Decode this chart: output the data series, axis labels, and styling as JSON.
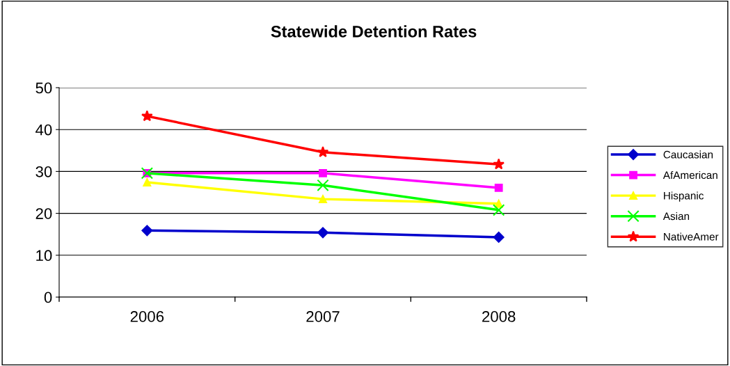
{
  "chart_data": {
    "type": "line",
    "title": "Statewide Detention Rates",
    "categories": [
      "2006",
      "2007",
      "2008"
    ],
    "ylim": [
      0,
      50
    ],
    "yticks": [
      0,
      10,
      20,
      30,
      40,
      50
    ],
    "grid": "y",
    "legend": "right",
    "series": [
      {
        "name": "Caucasian",
        "color": "#0000cc",
        "marker": "diamond",
        "values": [
          15.9,
          15.4,
          14.3
        ]
      },
      {
        "name": "AfAmerican",
        "color": "#ff00ff",
        "marker": "square",
        "values": [
          29.6,
          29.6,
          26.1
        ]
      },
      {
        "name": "Hispanic",
        "color": "#ffff00",
        "marker": "triangle",
        "values": [
          27.4,
          23.4,
          22.3
        ]
      },
      {
        "name": "Asian",
        "color": "#00ff00",
        "marker": "cross",
        "values": [
          29.6,
          26.7,
          20.8
        ]
      },
      {
        "name": "NativeAmer",
        "color": "#ff0000",
        "marker": "star",
        "values": [
          43.2,
          34.6,
          31.7
        ]
      }
    ]
  }
}
